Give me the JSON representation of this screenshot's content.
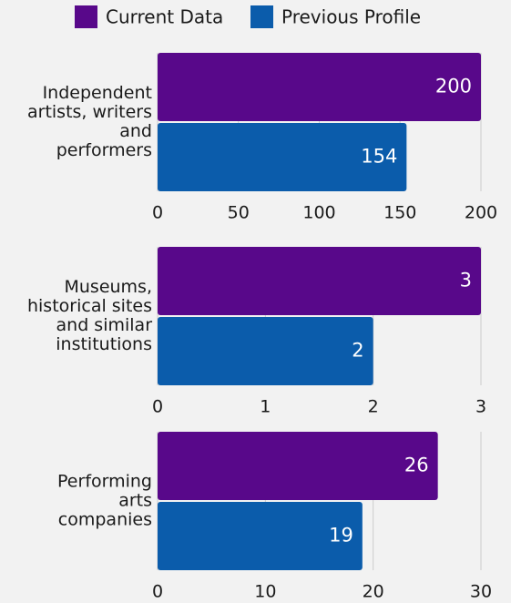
{
  "chart_data": {
    "type": "bar",
    "orientation": "horizontal",
    "categories": [
      "Independent\nartists, writers\nand\nperformers",
      "Museums,\nhistorical sites\nand similar\ninstitutions",
      "Performing\narts\ncompanies"
    ],
    "series": [
      {
        "name": "Current Data",
        "color": "#58088a",
        "values": [
          200,
          3,
          26
        ]
      },
      {
        "name": "Previous Profile",
        "color": "#0b5cab",
        "values": [
          154,
          2,
          19
        ]
      }
    ],
    "panels": [
      {
        "xlim": [
          0,
          200
        ],
        "xticks": [
          0,
          50,
          100,
          150,
          200
        ]
      },
      {
        "xlim": [
          0,
          3
        ],
        "xticks": [
          0,
          1,
          2,
          3
        ]
      },
      {
        "xlim": [
          0,
          30
        ],
        "xticks": [
          0,
          10,
          20,
          30
        ]
      }
    ],
    "grid": true
  }
}
